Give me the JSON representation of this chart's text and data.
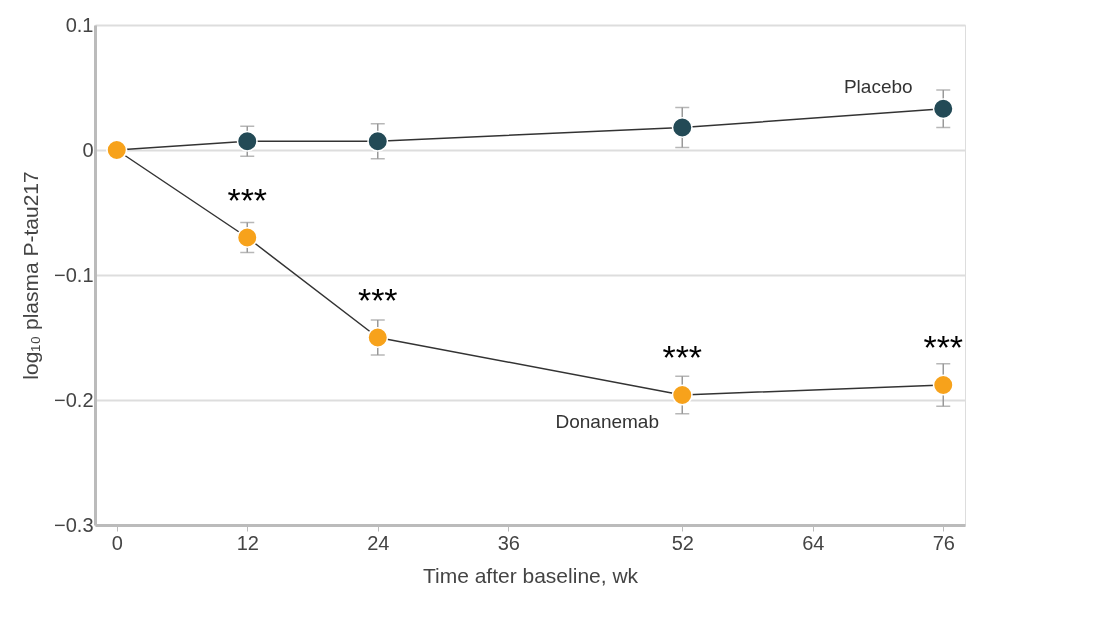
{
  "chart_data": {
    "type": "line",
    "xlabel": "Time after baseline, wk",
    "ylabel": "log₁₀ plasma P-tau217",
    "x": [
      0,
      12,
      24,
      52,
      76
    ],
    "series": [
      {
        "name": "Placebo",
        "color": "#234a56",
        "values": [
          0,
          0.007,
          0.007,
          0.018,
          0.033
        ],
        "errors": [
          null,
          0.012,
          0.014,
          0.016,
          0.015
        ]
      },
      {
        "name": "Donanemab",
        "color": "#f7a21b",
        "values": [
          0,
          -0.07,
          -0.15,
          -0.196,
          -0.188
        ],
        "errors": [
          null,
          0.012,
          0.014,
          0.015,
          0.017
        ]
      }
    ],
    "xlim": [
      -2,
      78
    ],
    "xticks": [
      0,
      12,
      24,
      36,
      52,
      64,
      76
    ],
    "ylim": [
      -0.3,
      0.1
    ],
    "yticks": [
      -0.3,
      -0.2,
      -0.1,
      0,
      0.1
    ],
    "grid": "y",
    "marker": "circle",
    "line_style": "solid",
    "annotations": [
      {
        "text": "***",
        "x": 12,
        "y": -0.07
      },
      {
        "text": "***",
        "x": 24,
        "y": -0.15
      },
      {
        "text": "***",
        "x": 52,
        "y": -0.196
      },
      {
        "text": "***",
        "x": 76,
        "y": -0.188
      }
    ]
  }
}
